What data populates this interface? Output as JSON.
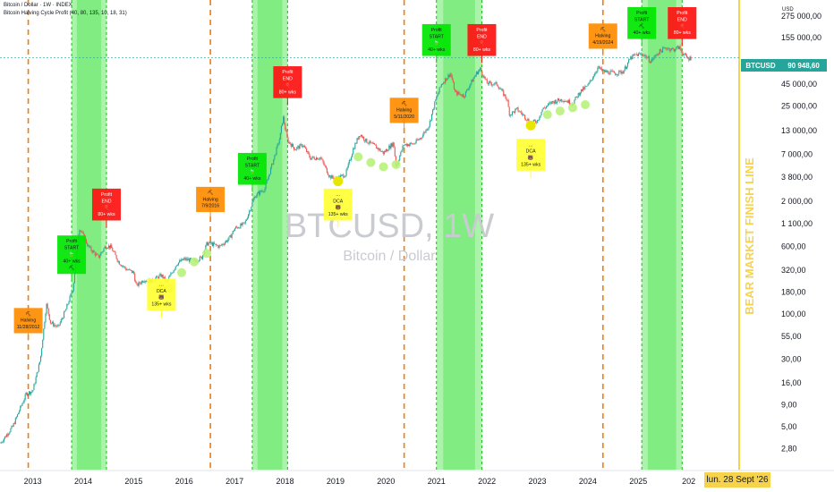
{
  "header": {
    "symbol_line": "Bitcoin / Dollar · 1W · INDEX",
    "indicator_line": "Bitcoin Halving Cycle Profit (40, 80, 135, 10, 18, 31)"
  },
  "watermark": {
    "symbol": "BTCUSD, 1W",
    "name": "Bitcoin / Dollar"
  },
  "price_axis": {
    "currency": "USD",
    "ticks": [
      "275 000,00",
      "155 000,00",
      "45 000,00",
      "25 000,00",
      "13 000,00",
      "7 000,00",
      "3 800,00",
      "2 000,00",
      "1 100,00",
      "600,00",
      "320,00",
      "180,00",
      "100,00",
      "55,00",
      "30,00",
      "16,00",
      "9,00",
      "5,00",
      "2,80"
    ]
  },
  "last_price": {
    "ticker": "BTCUSD",
    "value": "90 948,60"
  },
  "date_axis": {
    "years": [
      "2013",
      "2014",
      "2015",
      "2016",
      "2017",
      "2018",
      "2019",
      "2020",
      "2021",
      "2022",
      "2023",
      "2024",
      "2025",
      "202"
    ],
    "cursor_label": "lun. 28 Sept '26"
  },
  "bear_market_line": {
    "label": "BEAR MARKET FINISH LINE"
  },
  "colors": {
    "up_candle": "#26a69a",
    "down_candle": "#ef5350",
    "halving_line": "#f57c00",
    "profit_zone": "#22dd22",
    "profit_start": "#00e600",
    "profit_end": "#ff1111",
    "halving_box": "#ff8c00",
    "dca_box": "#ffff33",
    "bear_line": "#f7d34c",
    "price_tag": "#26a69a",
    "dca_dot": "#e6e600",
    "mid_dot": "#b8f27c"
  },
  "chart_data": {
    "type": "candlestick",
    "title": "Bitcoin / Dollar · 1W · INDEX",
    "scale": "log",
    "ylim": [
      1.6,
      420000
    ],
    "xlim": [
      2012.35,
      2027.0
    ],
    "x_unit": "decimal year",
    "price_series": [
      [
        2012.35,
        3.2
      ],
      [
        2012.6,
        5
      ],
      [
        2012.87,
        12
      ],
      [
        2013.0,
        13
      ],
      [
        2013.15,
        30
      ],
      [
        2013.27,
        130
      ],
      [
        2013.35,
        80
      ],
      [
        2013.5,
        70
      ],
      [
        2013.65,
        110
      ],
      [
        2013.8,
        200
      ],
      [
        2013.92,
        1000
      ],
      [
        2014.0,
        800
      ],
      [
        2014.1,
        600
      ],
      [
        2014.3,
        450
      ],
      [
        2014.45,
        620
      ],
      [
        2014.55,
        590
      ],
      [
        2014.7,
        400
      ],
      [
        2014.85,
        330
      ],
      [
        2015.0,
        300
      ],
      [
        2015.05,
        210
      ],
      [
        2015.2,
        250
      ],
      [
        2015.35,
        240
      ],
      [
        2015.55,
        280
      ],
      [
        2015.65,
        230
      ],
      [
        2015.85,
        380
      ],
      [
        2016.0,
        430
      ],
      [
        2016.2,
        410
      ],
      [
        2016.35,
        450
      ],
      [
        2016.45,
        650
      ],
      [
        2016.52,
        650
      ],
      [
        2016.7,
        600
      ],
      [
        2016.9,
        750
      ],
      [
        2017.0,
        970
      ],
      [
        2017.2,
        1100
      ],
      [
        2017.4,
        2300
      ],
      [
        2017.6,
        2800
      ],
      [
        2017.75,
        5500
      ],
      [
        2017.9,
        11000
      ],
      [
        2017.96,
        19000
      ],
      [
        2018.05,
        10000
      ],
      [
        2018.2,
        8000
      ],
      [
        2018.35,
        9000
      ],
      [
        2018.5,
        6300
      ],
      [
        2018.7,
        6400
      ],
      [
        2018.88,
        3900
      ],
      [
        2019.0,
        3600
      ],
      [
        2019.2,
        4100
      ],
      [
        2019.35,
        8000
      ],
      [
        2019.48,
        12000
      ],
      [
        2019.6,
        10000
      ],
      [
        2019.8,
        8500
      ],
      [
        2019.95,
        7200
      ],
      [
        2020.15,
        9500
      ],
      [
        2020.2,
        5000
      ],
      [
        2020.35,
        9000
      ],
      [
        2020.55,
        9200
      ],
      [
        2020.7,
        11000
      ],
      [
        2020.85,
        15000
      ],
      [
        2020.98,
        29000
      ],
      [
        2021.1,
        45000
      ],
      [
        2021.28,
        60000
      ],
      [
        2021.37,
        36000
      ],
      [
        2021.55,
        33000
      ],
      [
        2021.67,
        45000
      ],
      [
        2021.8,
        61000
      ],
      [
        2021.87,
        67000
      ],
      [
        2022.0,
        46000
      ],
      [
        2022.2,
        45000
      ],
      [
        2022.4,
        30000
      ],
      [
        2022.45,
        20000
      ],
      [
        2022.6,
        23000
      ],
      [
        2022.75,
        19000
      ],
      [
        2022.87,
        16000
      ],
      [
        2023.0,
        17000
      ],
      [
        2023.1,
        23000
      ],
      [
        2023.3,
        28000
      ],
      [
        2023.5,
        30000
      ],
      [
        2023.7,
        27000
      ],
      [
        2023.85,
        37000
      ],
      [
        2024.0,
        43000
      ],
      [
        2024.2,
        70000
      ],
      [
        2024.3,
        63000
      ],
      [
        2024.55,
        60000
      ],
      [
        2024.7,
        63000
      ],
      [
        2024.85,
        90000
      ],
      [
        2024.95,
        98000
      ],
      [
        2025.1,
        100000
      ],
      [
        2025.25,
        82000
      ],
      [
        2025.4,
        105000
      ],
      [
        2025.55,
        118000
      ],
      [
        2025.7,
        112000
      ],
      [
        2025.8,
        120000
      ],
      [
        2025.9,
        100000
      ],
      [
        2025.98,
        88000
      ],
      [
        2026.05,
        91000
      ]
    ],
    "halving_lines": [
      2012.91,
      2016.52,
      2020.36,
      2024.3
    ],
    "profit_zones": [
      [
        2013.77,
        2014.46
      ],
      [
        2017.35,
        2018.05
      ],
      [
        2021.0,
        2021.9
      ],
      [
        2025.07,
        2025.87
      ]
    ],
    "annotations": [
      {
        "kind": "halving",
        "text": [
          "⛏",
          "Halving",
          "11/28/2012"
        ],
        "x": 2012.91,
        "y": 60
      },
      {
        "kind": "profit-start",
        "text": [
          "Profit",
          "START",
          "🍃",
          "40+ wks",
          "⛏"
        ],
        "x": 2013.77,
        "y": 290
      },
      {
        "kind": "profit-end",
        "text": [
          "Profit",
          "END",
          "🎈",
          "80+ wks"
        ],
        "x": 2014.46,
        "y": 1200
      },
      {
        "kind": "halving",
        "text": [
          "⛏",
          "Halving",
          "7/9/2016"
        ],
        "x": 2016.52,
        "y": 1500
      },
      {
        "kind": "dca",
        "text": [
          "…",
          "DCA",
          "🐻",
          "135+ wks"
        ],
        "x": 2015.55,
        "y": 110
      },
      {
        "kind": "profit-start",
        "text": [
          "Profit",
          "START",
          "🍃",
          "40+ wks"
        ],
        "x": 2017.35,
        "y": 3100
      },
      {
        "kind": "profit-end",
        "text": [
          "Profit",
          "END",
          "🎈",
          "80+ wks"
        ],
        "x": 2018.05,
        "y": 31000
      },
      {
        "kind": "halving",
        "text": [
          "⛏",
          "Halving",
          "5/11/2020"
        ],
        "x": 2020.36,
        "y": 16000
      },
      {
        "kind": "dca",
        "text": [
          "…",
          "DCA",
          "🐻",
          "135+ wks"
        ],
        "x": 2019.05,
        "y": 1200
      },
      {
        "kind": "profit-start",
        "text": [
          "Profit",
          "START",
          "🍃",
          "40+ wks"
        ],
        "x": 2021.0,
        "y": 95000
      },
      {
        "kind": "profit-end",
        "text": [
          "Profit",
          "END",
          "🎈",
          "80+ wks"
        ],
        "x": 2021.9,
        "y": 95000
      },
      {
        "kind": "halving",
        "text": [
          "⛏",
          "Halving",
          "4/19/2024"
        ],
        "x": 2024.3,
        "y": 115000
      },
      {
        "kind": "dca",
        "text": [
          "…",
          "DCA",
          "🐻",
          "135+ wks"
        ],
        "x": 2022.87,
        "y": 4500
      },
      {
        "kind": "profit-start",
        "text": [
          "Profit",
          "START",
          "⛏",
          "40+ wks"
        ],
        "x": 2025.07,
        "y": 160000
      },
      {
        "kind": "profit-end",
        "text": [
          "Profit",
          "END",
          "🎈",
          "80+ wks"
        ],
        "x": 2025.87,
        "y": 180000
      }
    ],
    "dca_dots": [
      [
        2015.55,
        200
      ],
      [
        2019.05,
        3400
      ],
      [
        2022.87,
        15000
      ]
    ],
    "accumulation_dots": [
      [
        2015.72,
        200
      ],
      [
        2015.95,
        300
      ],
      [
        2016.2,
        400
      ],
      [
        2016.45,
        500
      ],
      [
        2019.45,
        6500
      ],
      [
        2019.7,
        5600
      ],
      [
        2019.95,
        5000
      ],
      [
        2020.2,
        5300
      ],
      [
        2023.2,
        20000
      ],
      [
        2023.45,
        22000
      ],
      [
        2023.7,
        24000
      ],
      [
        2023.95,
        26000
      ]
    ]
  }
}
